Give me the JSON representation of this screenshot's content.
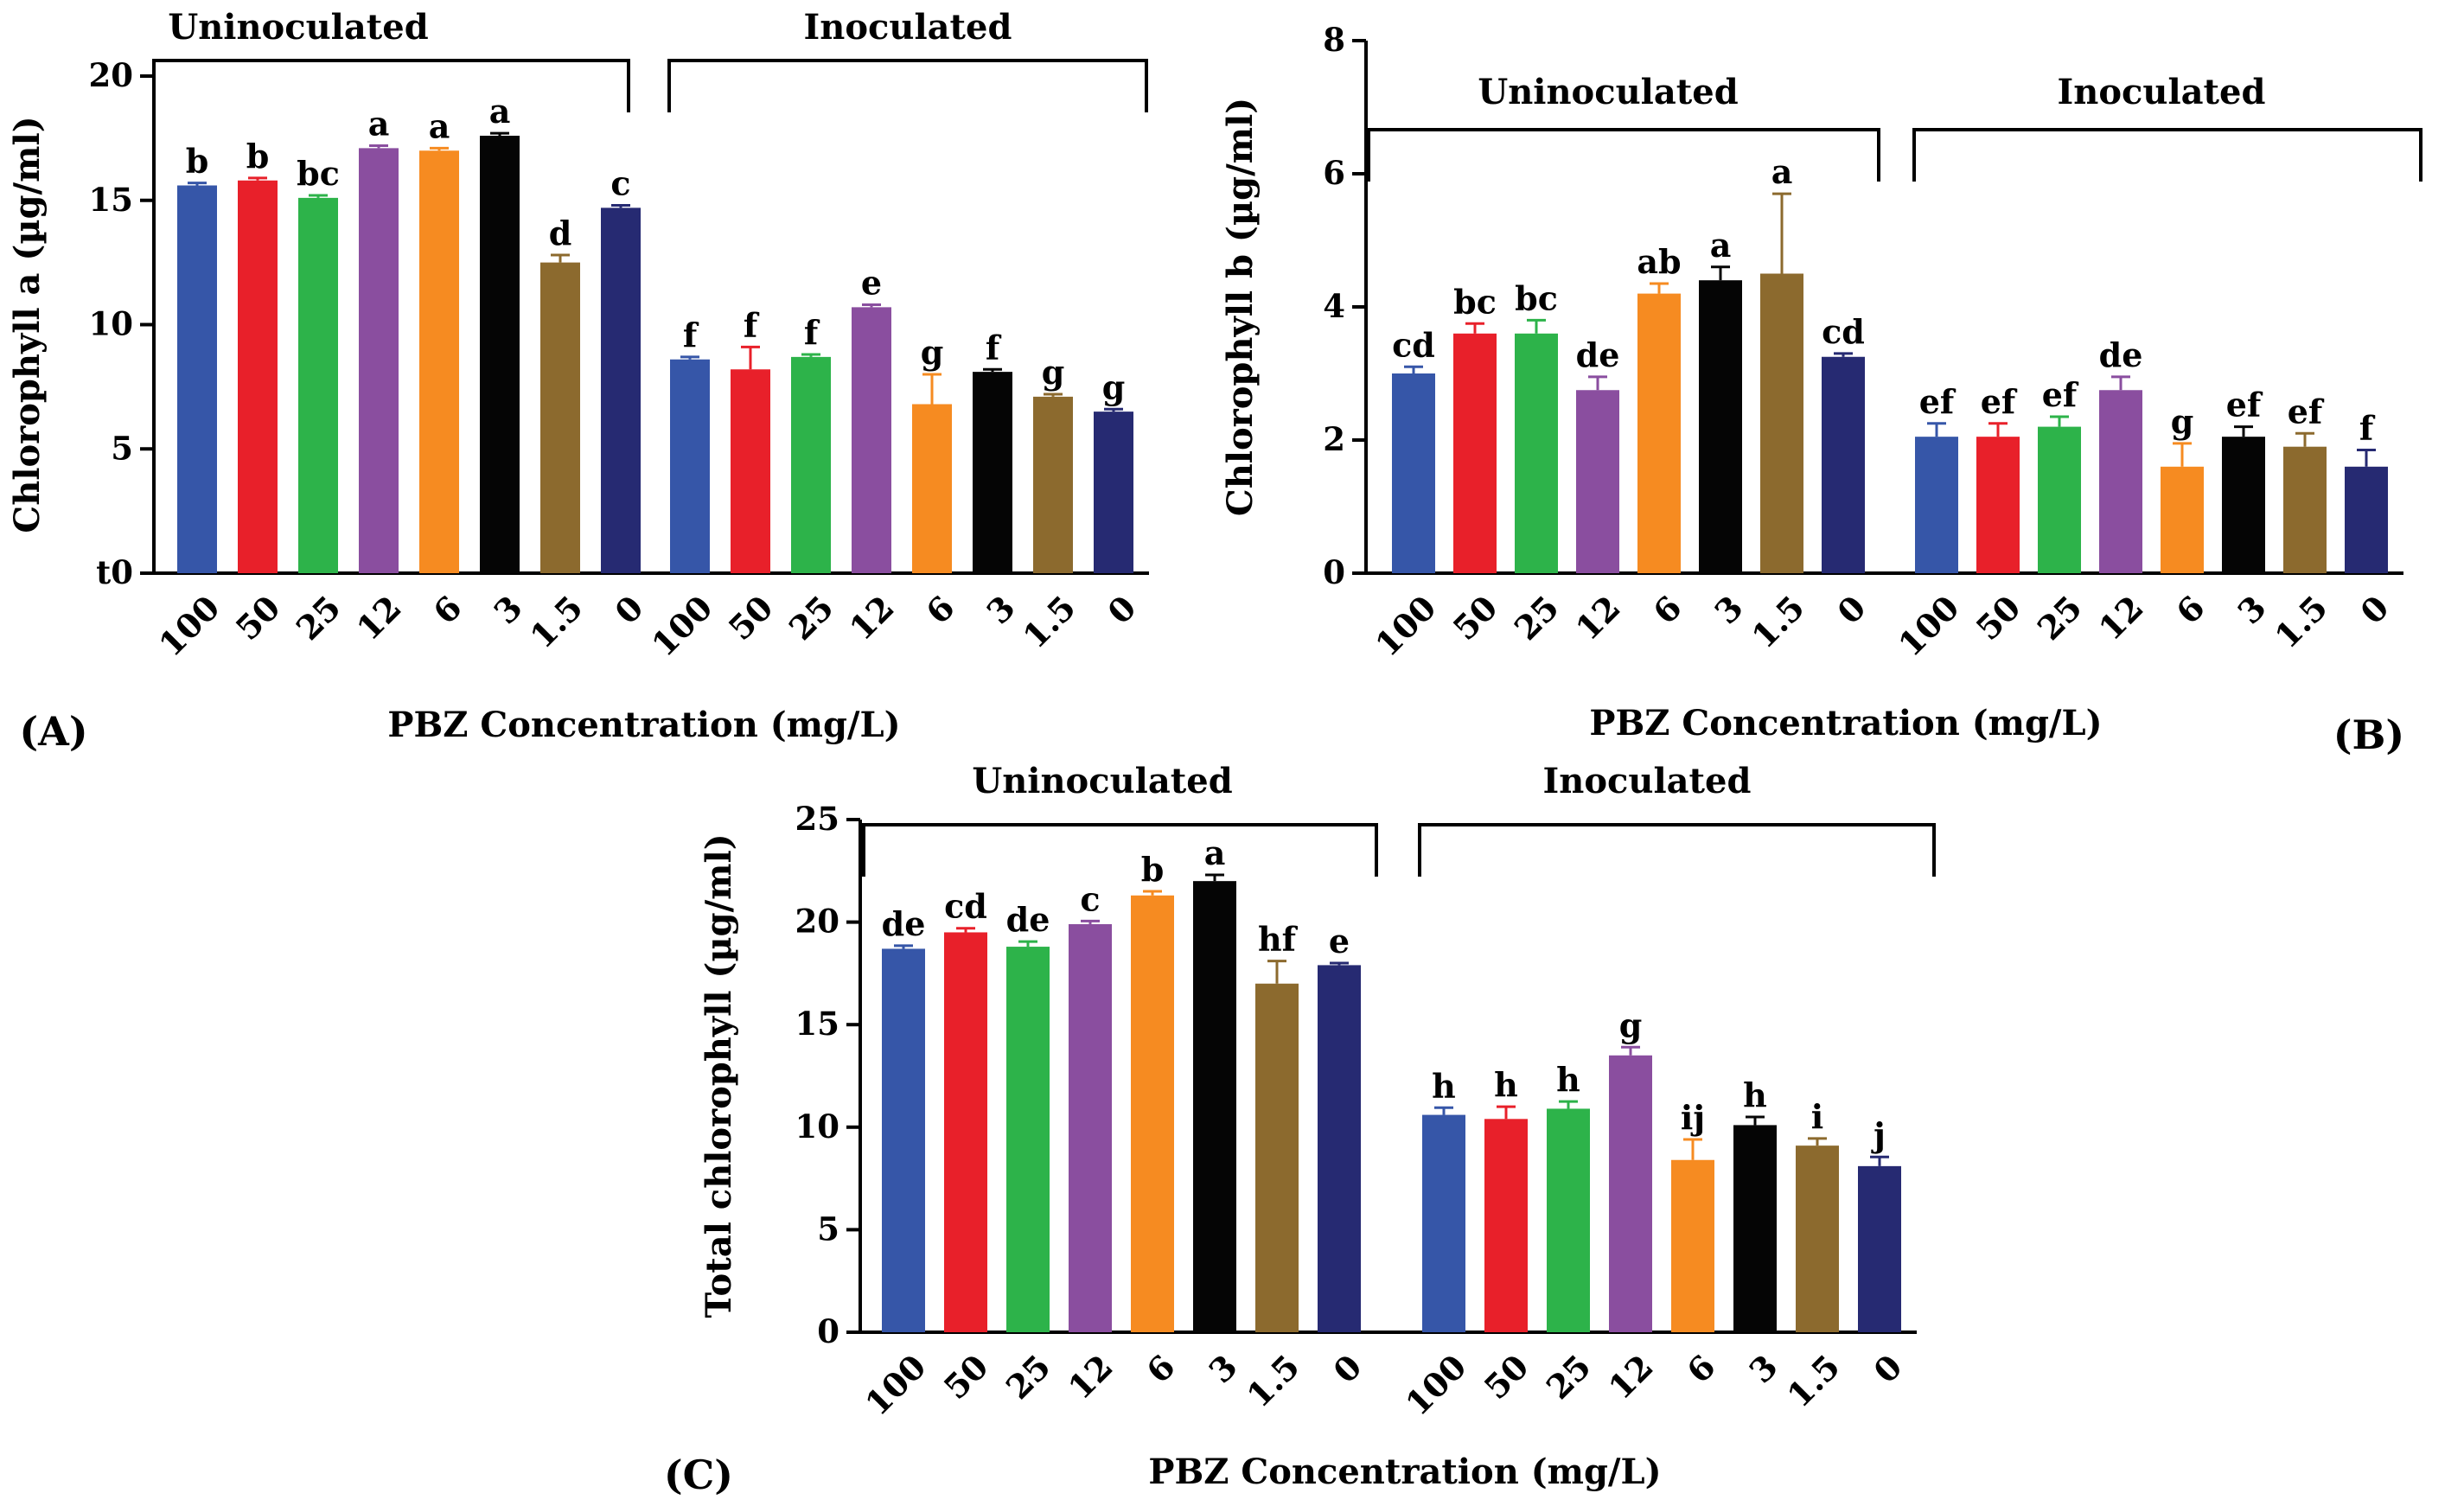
{
  "chart_data": [
    {
      "type": "bar",
      "panel_label": "(A)",
      "ylabel": "Chlorophyll a (µg/ml)",
      "xlabel": "PBZ Concentration (mg/L)",
      "ylim": [
        0,
        20
      ],
      "yticks": [
        {
          "value": 0,
          "label": "t0"
        },
        {
          "value": 5,
          "label": "5"
        },
        {
          "value": 10,
          "label": "10"
        },
        {
          "value": 15,
          "label": "15"
        },
        {
          "value": 20,
          "label": "20"
        }
      ],
      "groups": [
        {
          "name": "Uninoculated",
          "categories": [
            "100",
            "50",
            "25",
            "12",
            "6",
            "3",
            "1.5",
            "0"
          ],
          "values": [
            15.6,
            15.8,
            15.1,
            17.1,
            17.0,
            17.6,
            12.5,
            14.7
          ],
          "errors": [
            0.1,
            0.1,
            0.1,
            0.1,
            0.1,
            0.1,
            0.3,
            0.1
          ],
          "significance": [
            "b",
            "b",
            "bc",
            "a",
            "a",
            "a",
            "d",
            "c"
          ]
        },
        {
          "name": "Inoculated",
          "categories": [
            "100",
            "50",
            "25",
            "12",
            "6",
            "3",
            "1.5",
            "0"
          ],
          "values": [
            8.6,
            8.2,
            8.7,
            10.7,
            6.8,
            8.1,
            7.1,
            6.5
          ],
          "errors": [
            0.1,
            0.9,
            0.1,
            0.1,
            1.2,
            0.1,
            0.1,
            0.1
          ],
          "significance": [
            "f",
            "f",
            "f",
            "e",
            "g",
            "f",
            "g",
            "g"
          ]
        }
      ]
    },
    {
      "type": "bar",
      "panel_label": "(B)",
      "ylabel": "Chlorophyll b (µg/ml)",
      "xlabel": "PBZ Concentration (mg/L)",
      "ylim": [
        0,
        8
      ],
      "yticks": [
        {
          "value": 0,
          "label": "0"
        },
        {
          "value": 2,
          "label": "2"
        },
        {
          "value": 4,
          "label": "4"
        },
        {
          "value": 6,
          "label": "6"
        },
        {
          "value": 8,
          "label": "8"
        }
      ],
      "groups": [
        {
          "name": "Uninoculated",
          "categories": [
            "100",
            "50",
            "25",
            "12",
            "6",
            "3",
            "1.5",
            "0"
          ],
          "values": [
            3.0,
            3.6,
            3.6,
            2.75,
            4.2,
            4.4,
            4.5,
            3.25
          ],
          "errors": [
            0.1,
            0.15,
            0.2,
            0.2,
            0.15,
            0.2,
            1.2,
            0.05
          ],
          "significance": [
            "cd",
            "bc",
            "bc",
            "de",
            "ab",
            "a",
            "a",
            "cd"
          ]
        },
        {
          "name": "Inoculated",
          "categories": [
            "100",
            "50",
            "25",
            "12",
            "6",
            "3",
            "1.5",
            "0"
          ],
          "values": [
            2.05,
            2.05,
            2.2,
            2.75,
            1.6,
            2.05,
            1.9,
            1.6
          ],
          "errors": [
            0.2,
            0.2,
            0.15,
            0.2,
            0.35,
            0.15,
            0.2,
            0.25
          ],
          "significance": [
            "ef",
            "ef",
            "ef",
            "de",
            "g",
            "ef",
            "ef",
            "f"
          ]
        }
      ]
    },
    {
      "type": "bar",
      "panel_label": "(C)",
      "ylabel": "Total chlorophyll (µg/ml)",
      "xlabel": "PBZ Concentration (mg/L)",
      "ylim": [
        0,
        25
      ],
      "yticks": [
        {
          "value": 0,
          "label": "0"
        },
        {
          "value": 5,
          "label": "5"
        },
        {
          "value": 10,
          "label": "10"
        },
        {
          "value": 15,
          "label": "15"
        },
        {
          "value": 20,
          "label": "20"
        },
        {
          "value": 25,
          "label": "25"
        }
      ],
      "groups": [
        {
          "name": "Uninoculated",
          "categories": [
            "100",
            "50",
            "25",
            "12",
            "6",
            "3",
            "1.5",
            "0"
          ],
          "values": [
            18.7,
            19.5,
            18.8,
            19.9,
            21.3,
            22.0,
            17.0,
            17.9
          ],
          "errors": [
            0.15,
            0.2,
            0.25,
            0.15,
            0.2,
            0.3,
            1.1,
            0.1
          ],
          "significance": [
            "de",
            "cd",
            "de",
            "c",
            "b",
            "a",
            "hf",
            "e"
          ]
        },
        {
          "name": "Inoculated",
          "categories": [
            "100",
            "50",
            "25",
            "12",
            "6",
            "3",
            "1.5",
            "0"
          ],
          "values": [
            10.6,
            10.4,
            10.9,
            13.5,
            8.4,
            10.1,
            9.1,
            8.1
          ],
          "errors": [
            0.35,
            0.6,
            0.35,
            0.4,
            1.0,
            0.4,
            0.35,
            0.45
          ],
          "significance": [
            "h",
            "h",
            "h",
            "g",
            "ij",
            "h",
            "i",
            "j"
          ]
        }
      ]
    }
  ],
  "colors": {
    "bars": [
      "#3656a8",
      "#e8202a",
      "#2db34a",
      "#8a4e9f",
      "#f68b21",
      "#050505",
      "#8c6a2e",
      "#262a72"
    ],
    "axis": "#000000"
  }
}
